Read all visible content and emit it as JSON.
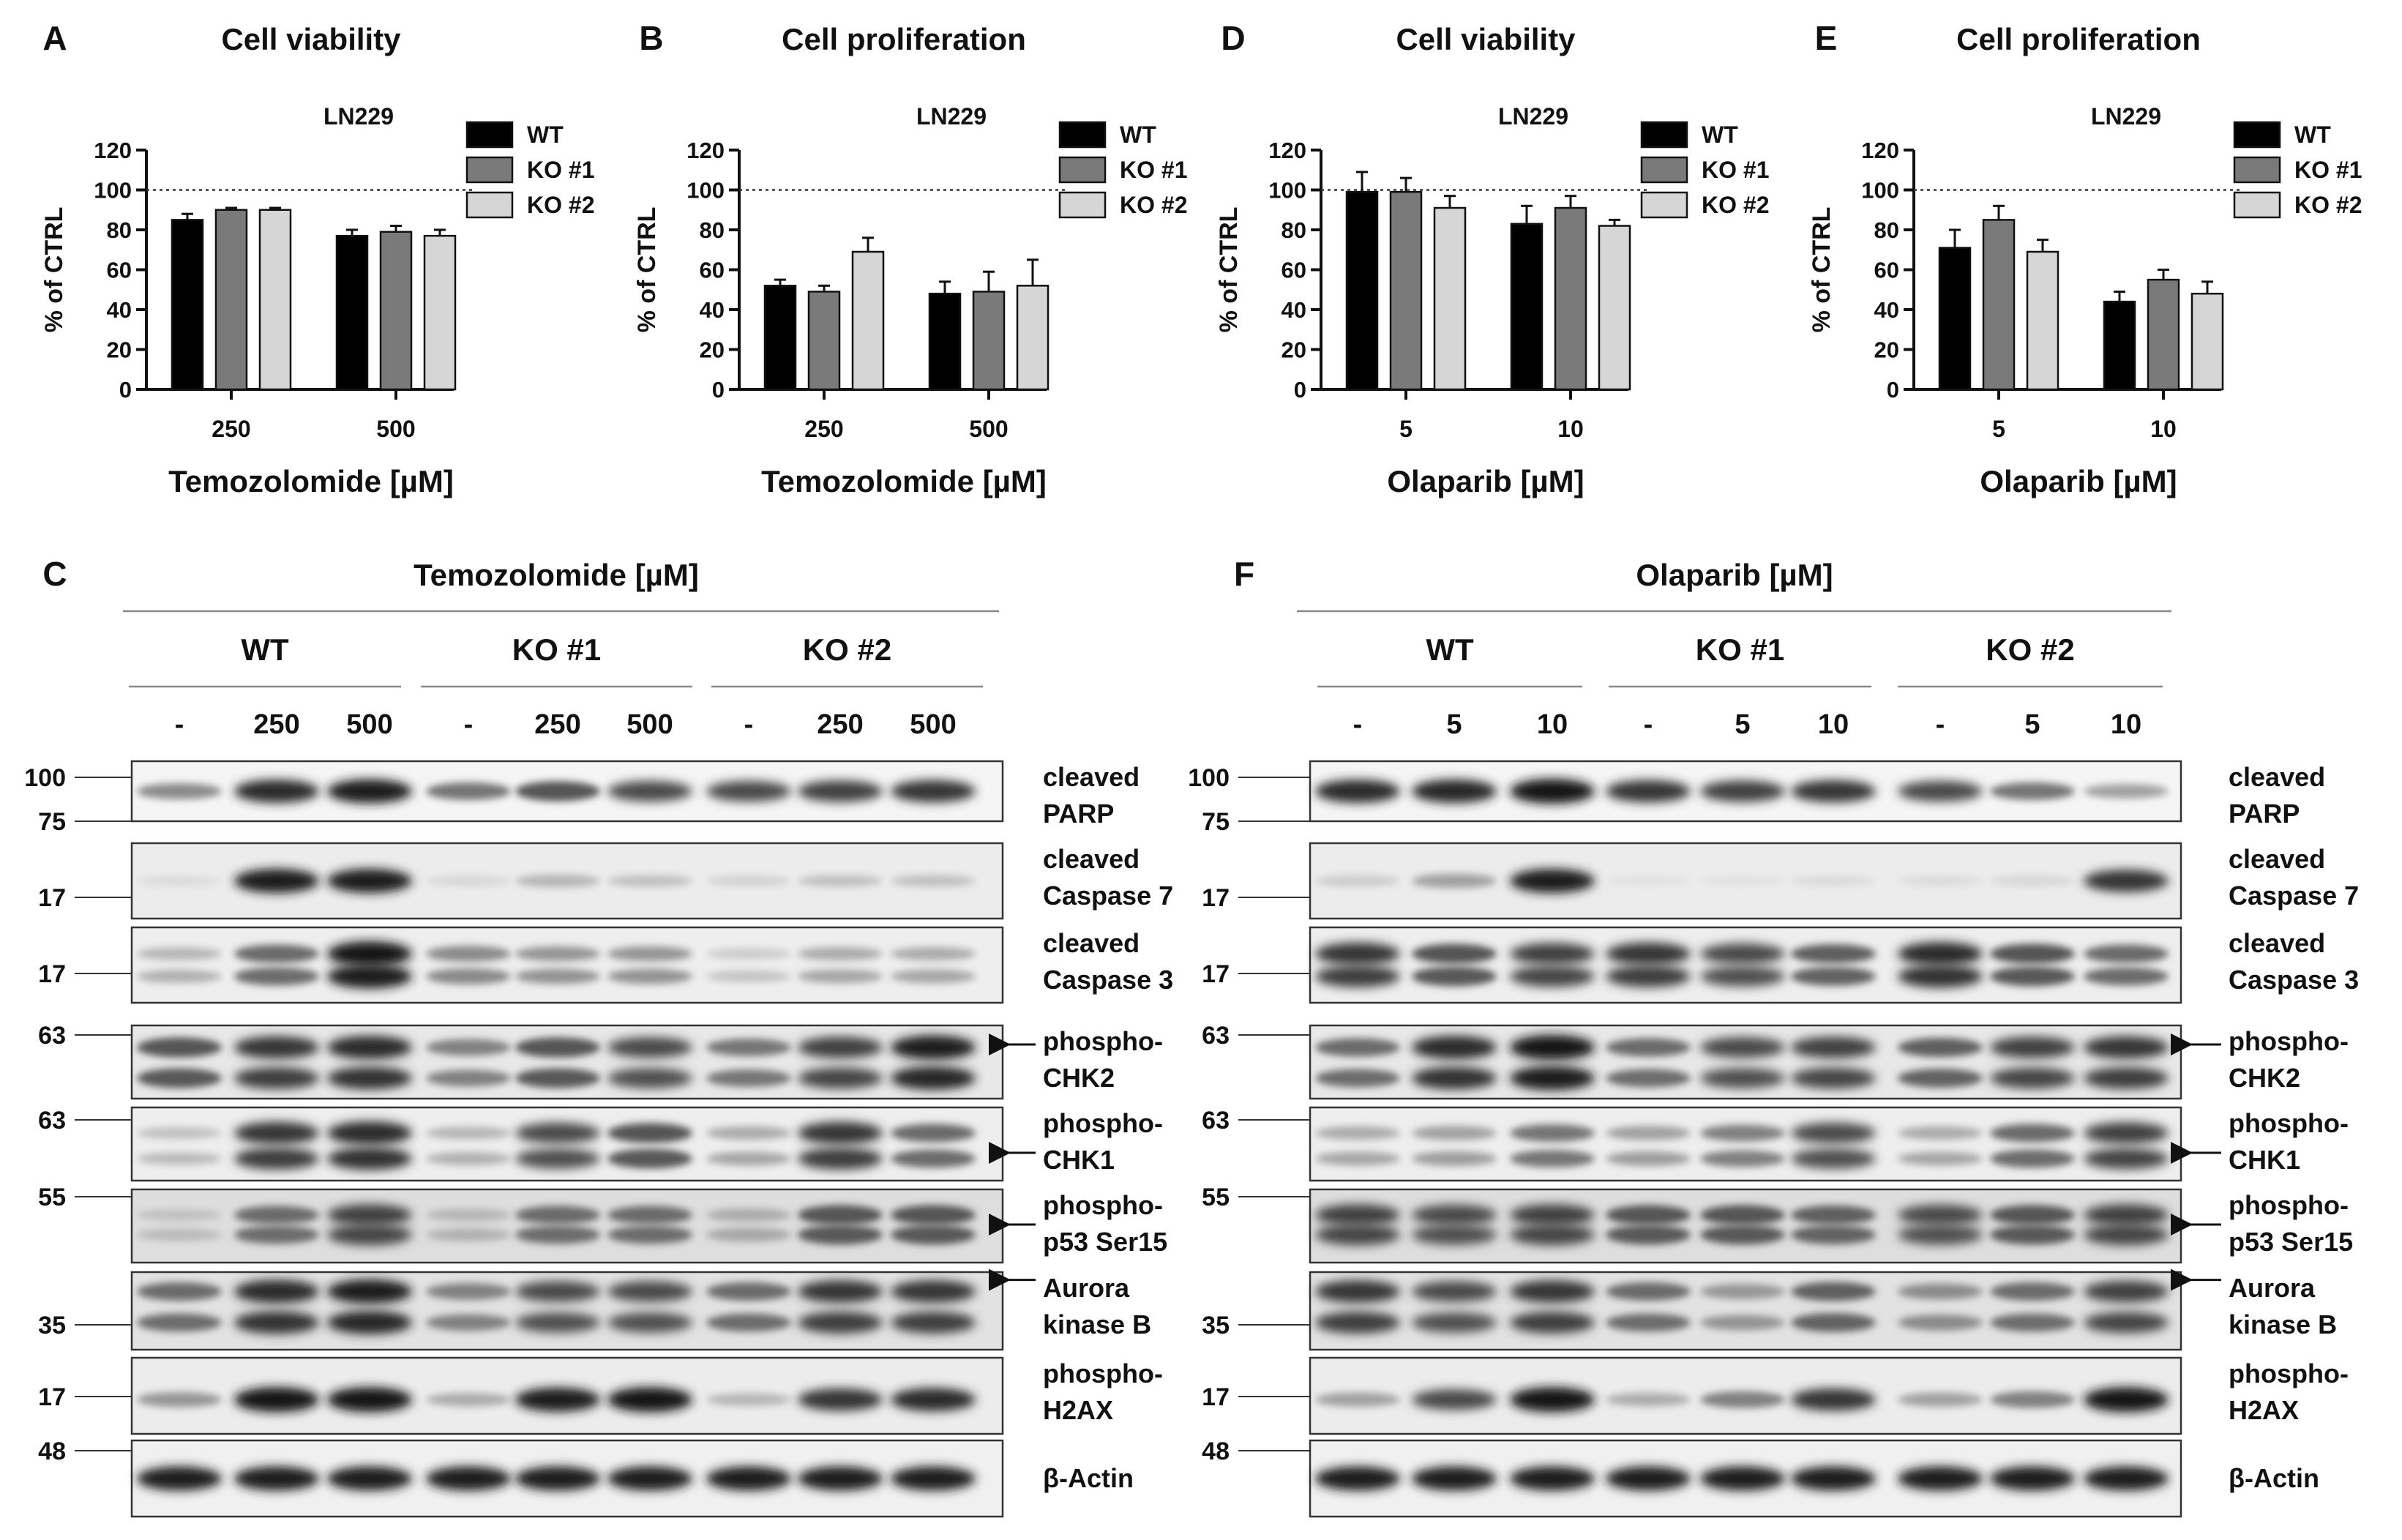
{
  "charts": [
    {
      "letter": "A",
      "title": "Cell viability",
      "cell_line": "LN229",
      "xlabel": "Temozolomide [µM]",
      "ylabel": "% of CTRL",
      "categories": [
        "250",
        "500"
      ],
      "values": [
        [
          85,
          77
        ],
        [
          90,
          79
        ],
        [
          90,
          77
        ]
      ],
      "errors": [
        [
          3,
          3
        ],
        [
          1,
          3
        ],
        [
          1,
          3
        ]
      ]
    },
    {
      "letter": "B",
      "title": "Cell proliferation",
      "cell_line": "LN229",
      "xlabel": "Temozolomide [µM]",
      "ylabel": "% of CTRL",
      "categories": [
        "250",
        "500"
      ],
      "values": [
        [
          52,
          48
        ],
        [
          49,
          49
        ],
        [
          69,
          52
        ]
      ],
      "errors": [
        [
          3,
          6
        ],
        [
          3,
          10
        ],
        [
          7,
          13
        ]
      ]
    },
    {
      "letter": "D",
      "title": "Cell viability",
      "cell_line": "LN229",
      "xlabel": "Olaparib [µM]",
      "ylabel": "% of CTRL",
      "categories": [
        "5",
        "10"
      ],
      "values": [
        [
          99,
          83
        ],
        [
          99,
          91
        ],
        [
          91,
          82
        ]
      ],
      "errors": [
        [
          10,
          9
        ],
        [
          7,
          6
        ],
        [
          6,
          3
        ]
      ]
    },
    {
      "letter": "E",
      "title": "Cell proliferation",
      "cell_line": "LN229",
      "xlabel": "Olaparib [µM]",
      "ylabel": "% of CTRL",
      "categories": [
        "5",
        "10"
      ],
      "values": [
        [
          71,
          44
        ],
        [
          85,
          55
        ],
        [
          69,
          48
        ]
      ],
      "errors": [
        [
          9,
          5
        ],
        [
          7,
          5
        ],
        [
          6,
          6
        ]
      ]
    }
  ],
  "chart_data": [
    {
      "type": "bar",
      "title": "Cell viability",
      "subtitle": "LN229",
      "xlabel": "Temozolomide [µM]",
      "ylabel": "% of CTRL",
      "ylim": [
        0,
        120
      ],
      "reference_line": 100,
      "categories": [
        "250",
        "500"
      ],
      "series": [
        {
          "name": "WT",
          "values": [
            85,
            77
          ]
        },
        {
          "name": "KO #1",
          "values": [
            90,
            79
          ]
        },
        {
          "name": "KO #2",
          "values": [
            90,
            77
          ]
        }
      ]
    },
    {
      "type": "bar",
      "title": "Cell proliferation",
      "subtitle": "LN229",
      "xlabel": "Temozolomide [µM]",
      "ylabel": "% of CTRL",
      "ylim": [
        0,
        120
      ],
      "reference_line": 100,
      "categories": [
        "250",
        "500"
      ],
      "series": [
        {
          "name": "WT",
          "values": [
            52,
            48
          ]
        },
        {
          "name": "KO #1",
          "values": [
            49,
            49
          ]
        },
        {
          "name": "KO #2",
          "values": [
            69,
            52
          ]
        }
      ]
    },
    {
      "type": "bar",
      "title": "Cell viability",
      "subtitle": "LN229",
      "xlabel": "Olaparib [µM]",
      "ylabel": "% of CTRL",
      "ylim": [
        0,
        120
      ],
      "reference_line": 100,
      "categories": [
        "5",
        "10"
      ],
      "series": [
        {
          "name": "WT",
          "values": [
            99,
            83
          ]
        },
        {
          "name": "KO #1",
          "values": [
            99,
            91
          ]
        },
        {
          "name": "KO #2",
          "values": [
            91,
            82
          ]
        }
      ]
    },
    {
      "type": "bar",
      "title": "Cell proliferation",
      "subtitle": "LN229",
      "xlabel": "Olaparib [µM]",
      "ylabel": "% of CTRL",
      "ylim": [
        0,
        120
      ],
      "reference_line": 100,
      "categories": [
        "5",
        "10"
      ],
      "series": [
        {
          "name": "WT",
          "values": [
            71,
            44
          ]
        },
        {
          "name": "KO #1",
          "values": [
            85,
            55
          ]
        },
        {
          "name": "KO #2",
          "values": [
            69,
            48
          ]
        }
      ]
    }
  ],
  "legend": [
    "WT",
    "KO #1",
    "KO #2"
  ],
  "yticks": [
    "0",
    "20",
    "40",
    "60",
    "80",
    "100",
    "120"
  ],
  "bar_colors": [
    "#000000",
    "#7a7a7a",
    "#d6d6d6"
  ],
  "blots": [
    {
      "letter": "C",
      "treatment": "Temozolomide [µM]",
      "groups": [
        "WT",
        "KO #1",
        "KO #2"
      ],
      "doses": [
        "-",
        "250",
        "500",
        "-",
        "250",
        "500",
        "-",
        "250",
        "500"
      ]
    },
    {
      "letter": "F",
      "treatment": "Olaparib [µM]",
      "groups": [
        "WT",
        "KO #1",
        "KO #2"
      ],
      "doses": [
        "-",
        "5",
        "10",
        "-",
        "5",
        "10",
        "-",
        "5",
        "10"
      ]
    }
  ],
  "blot_rows": [
    {
      "line1": "cleaved",
      "line2": "PARP",
      "markers": [
        "100",
        "75"
      ]
    },
    {
      "line1": "cleaved",
      "line2": "Caspase 7",
      "markers": [
        "17"
      ]
    },
    {
      "line1": "cleaved",
      "line2": "Caspase 3",
      "markers": [
        "17"
      ]
    },
    {
      "line1": "phospho-",
      "line2": "CHK2",
      "markers": [
        "63"
      ]
    },
    {
      "line1": "phospho-",
      "line2": "CHK1",
      "markers": [
        "63"
      ]
    },
    {
      "line1": "phospho-",
      "line2": "p53 Ser15",
      "markers": [
        "55"
      ]
    },
    {
      "line1": "Aurora",
      "line2": "kinase B",
      "markers": [
        "35"
      ]
    },
    {
      "line1": "phospho-",
      "line2": "H2AX",
      "markers": [
        "17"
      ]
    },
    {
      "line1": "β-Actin",
      "line2": "",
      "markers": [
        "48"
      ]
    }
  ]
}
